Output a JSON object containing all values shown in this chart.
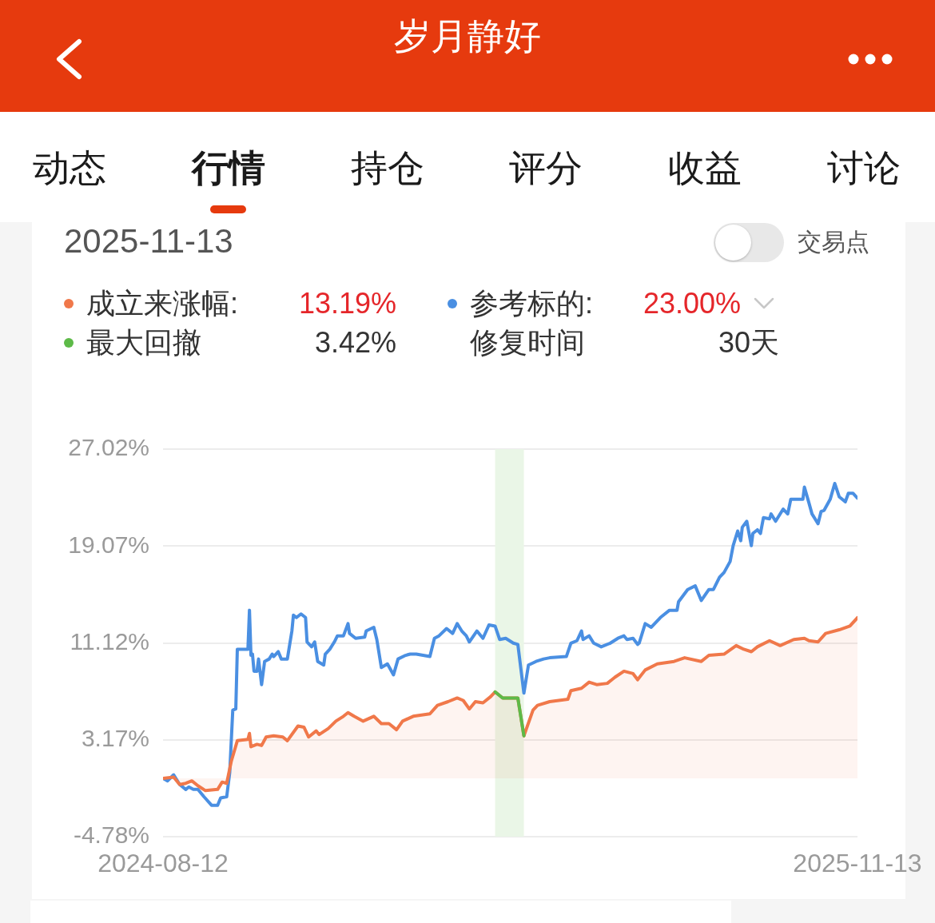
{
  "chart_data": {
    "type": "line",
    "title": "岁月静好",
    "subtitle": "2025-11-13",
    "annotations": [
      "动态",
      "行情",
      "持仓",
      "评分",
      "收益",
      "讨论",
      "交易点",
      "13.19%",
      "23.00%",
      "3.42%",
      "修复时间",
      "30天"
    ],
    "xlim": [
      "2024-08-12",
      "2025-11-13"
    ],
    "xticks": [
      "2024-08-12",
      "2025-11-13"
    ],
    "ylim": [
      -4.78,
      27.02
    ],
    "yticks": [
      {
        "value": -4.78,
        "label": "-4.78%"
      },
      {
        "value": 3.17,
        "label": "3.17%"
      },
      {
        "value": 11.12,
        "label": "11.12%"
      },
      {
        "value": 19.07,
        "label": "19.07%"
      },
      {
        "value": 27.02,
        "label": "27.02%"
      }
    ],
    "grid": "y",
    "legend": "top",
    "marker": "none",
    "bands": [
      {
        "axis": "x",
        "from": "2025-03-19",
        "to": "2025-04-07",
        "color": "#eaf6e7"
      }
    ],
    "series": [
      {
        "name": "成立来涨幅:",
        "type": "area",
        "color": "#f0784a",
        "x": [
          "2024-08-12",
          "2024-08-19",
          "2024-08-23",
          "2024-08-27",
          "2024-08-31",
          "2024-09-04",
          "2024-09-09",
          "2024-09-17",
          "2024-09-20",
          "2024-09-23",
          "2024-09-26",
          "2024-09-30",
          "2024-10-07",
          "2024-10-08",
          "2024-10-09",
          "2024-10-13",
          "2024-10-16",
          "2024-10-19",
          "2024-10-24",
          "2024-10-30",
          "2024-11-02",
          "2024-11-09",
          "2024-11-13",
          "2024-11-16",
          "2024-11-21",
          "2024-11-23",
          "2024-11-29",
          "2024-12-04",
          "2024-12-09",
          "2024-12-12",
          "2024-12-16",
          "2024-12-22",
          "2024-12-29",
          "2025-01-03",
          "2025-01-08",
          "2025-01-13",
          "2025-01-17",
          "2025-01-24",
          "2025-02-04",
          "2025-02-09",
          "2025-02-16",
          "2025-02-22",
          "2025-02-26",
          "2025-03-02",
          "2025-03-06",
          "2025-03-11",
          "2025-03-16",
          "2025-03-19",
          "2025-03-24",
          "2025-03-31",
          "2025-04-03",
          "2025-04-07",
          "2025-04-13",
          "2025-04-16",
          "2025-04-24",
          "2025-05-06",
          "2025-05-08",
          "2025-05-15",
          "2025-05-20",
          "2025-05-25",
          "2025-06-01",
          "2025-06-06",
          "2025-06-12",
          "2025-06-18",
          "2025-06-21",
          "2025-06-26",
          "2025-07-04",
          "2025-07-15",
          "2025-07-22",
          "2025-08-02",
          "2025-08-07",
          "2025-08-17",
          "2025-08-25",
          "2025-08-30",
          "2025-09-04",
          "2025-09-08",
          "2025-09-16",
          "2025-09-23",
          "2025-10-02",
          "2025-10-09",
          "2025-10-12",
          "2025-10-18",
          "2025-10-23",
          "2025-11-01",
          "2025-11-08",
          "2025-11-13"
        ],
        "values": [
          0,
          0.1,
          -0.5,
          -0.4,
          -0.2,
          -0.6,
          -1.0,
          -0.9,
          -0.3,
          -0.4,
          1.4,
          3.1,
          3.2,
          3.7,
          2.6,
          2.8,
          2.7,
          3.4,
          3.5,
          3.4,
          3.1,
          4.3,
          4.2,
          3.4,
          3.9,
          3.6,
          4.1,
          4.7,
          5.1,
          5.4,
          5.1,
          4.7,
          5.1,
          4.5,
          4.5,
          4.0,
          4.7,
          5.1,
          5.3,
          6.0,
          6.3,
          6.6,
          6.4,
          5.7,
          6.3,
          6.2,
          6.7,
          7.1,
          6.6,
          6.6,
          6.6,
          3.5,
          5.6,
          6.0,
          6.3,
          6.5,
          7.2,
          7.4,
          7.9,
          7.7,
          7.8,
          8.3,
          8.8,
          8.6,
          8.1,
          8.9,
          9.4,
          9.6,
          9.9,
          9.6,
          10.1,
          10.2,
          10.9,
          10.6,
          10.4,
          10.8,
          11.3,
          10.9,
          11.4,
          11.5,
          11.3,
          11.2,
          11.9,
          12.2,
          12.5,
          13.19
        ]
      },
      {
        "name": "参考标的:",
        "type": "line",
        "color": "#4a8fe2",
        "x": [
          "2024-08-12",
          "2024-08-15",
          "2024-08-19",
          "2024-08-23",
          "2024-08-27",
          "2024-08-29",
          "2024-09-01",
          "2024-09-04",
          "2024-09-08",
          "2024-09-13",
          "2024-09-17",
          "2024-09-19",
          "2024-09-23",
          "2024-09-25",
          "2024-09-27",
          "2024-09-29",
          "2024-09-30",
          "2024-10-07",
          "2024-10-08",
          "2024-10-09",
          "2024-10-10",
          "2024-10-11",
          "2024-10-13",
          "2024-10-14",
          "2024-10-16",
          "2024-10-18",
          "2024-10-21",
          "2024-10-23",
          "2024-10-24",
          "2024-10-27",
          "2024-10-29",
          "2024-11-02",
          "2024-11-05",
          "2024-11-06",
          "2024-11-08",
          "2024-11-11",
          "2024-11-14",
          "2024-11-15",
          "2024-11-18",
          "2024-11-20",
          "2024-11-22",
          "2024-11-26",
          "2024-11-27",
          "2024-11-30",
          "2024-12-03",
          "2024-12-05",
          "2024-12-09",
          "2024-12-12",
          "2024-12-13",
          "2024-12-17",
          "2024-12-23",
          "2024-12-24",
          "2024-12-29",
          "2024-12-31",
          "2025-01-03",
          "2025-01-07",
          "2025-01-11",
          "2025-01-14",
          "2025-01-19",
          "2025-01-22",
          "2025-01-26",
          "2025-02-04",
          "2025-02-07",
          "2025-02-10",
          "2025-02-15",
          "2025-02-19",
          "2025-02-22",
          "2025-02-25",
          "2025-02-28",
          "2025-03-02",
          "2025-03-07",
          "2025-03-11",
          "2025-03-15",
          "2025-03-19",
          "2025-03-22",
          "2025-03-26",
          "2025-03-31",
          "2025-04-03",
          "2025-04-07",
          "2025-04-10",
          "2025-04-15",
          "2025-04-20",
          "2025-04-24",
          "2025-05-05",
          "2025-05-08",
          "2025-05-12",
          "2025-05-15",
          "2025-05-16",
          "2025-05-20",
          "2025-05-23",
          "2025-05-28",
          "2025-06-03",
          "2025-06-08",
          "2025-06-12",
          "2025-06-14",
          "2025-06-18",
          "2025-06-21",
          "2025-06-22",
          "2025-06-26",
          "2025-06-30",
          "2025-07-06",
          "2025-07-12",
          "2025-07-17",
          "2025-07-18",
          "2025-07-24",
          "2025-07-29",
          "2025-08-02",
          "2025-08-07",
          "2025-08-10",
          "2025-08-14",
          "2025-08-17",
          "2025-08-21",
          "2025-08-23",
          "2025-08-26",
          "2025-08-28",
          "2025-08-29",
          "2025-09-01",
          "2025-09-04",
          "2025-09-05",
          "2025-09-08",
          "2025-09-10",
          "2025-09-12",
          "2025-09-16",
          "2025-09-17",
          "2025-09-20",
          "2025-09-25",
          "2025-09-28",
          "2025-09-30",
          "2025-10-08",
          "2025-10-09",
          "2025-10-12",
          "2025-10-14",
          "2025-10-18",
          "2025-10-20",
          "2025-10-22",
          "2025-10-26",
          "2025-10-29",
          "2025-11-01",
          "2025-11-05",
          "2025-11-07",
          "2025-11-10",
          "2025-11-13"
        ],
        "values": [
          0,
          -0.2,
          0.3,
          -0.5,
          -0.9,
          -0.7,
          -0.9,
          -0.9,
          -1.5,
          -2.2,
          -2.2,
          -1.6,
          -1.5,
          0.5,
          5.6,
          5.7,
          10.6,
          10.6,
          13.8,
          10.1,
          10.2,
          8.8,
          8.8,
          9.8,
          7.7,
          9.6,
          9.8,
          10.2,
          10.0,
          10.4,
          9.8,
          9.8,
          12.1,
          13.4,
          13.2,
          13.5,
          13.2,
          11.2,
          10.8,
          11.2,
          9.6,
          9.3,
          10.2,
          10.6,
          11.2,
          11.7,
          11.7,
          12.7,
          11.9,
          11.5,
          11.6,
          12.1,
          12.4,
          11.4,
          9.1,
          9.4,
          8.5,
          9.8,
          10.1,
          10.2,
          10.2,
          10.0,
          11.5,
          11.7,
          12.3,
          11.9,
          12.7,
          12.1,
          11.7,
          11.2,
          12.1,
          11.5,
          12.6,
          12.5,
          11.4,
          11.5,
          11.1,
          11.0,
          7.0,
          9.3,
          9.6,
          9.8,
          9.9,
          10.0,
          11.1,
          11.3,
          12.1,
          11.4,
          11.7,
          11.1,
          10.8,
          11.1,
          11.5,
          11.7,
          11.4,
          11.5,
          11.0,
          11.1,
          12.7,
          12.4,
          13.2,
          13.8,
          13.8,
          14.5,
          15.5,
          15.8,
          14.6,
          15.5,
          15.5,
          16.5,
          16.9,
          17.8,
          19.1,
          20.3,
          19.5,
          20.6,
          21.1,
          19.1,
          20.1,
          20.4,
          20.1,
          21.4,
          21.3,
          21.7,
          21.1,
          22.1,
          21.7,
          22.9,
          22.9,
          23.9,
          22.6,
          21.7,
          20.9,
          21.9,
          22.0,
          22.9,
          24.2,
          23.1,
          22.7,
          23.4,
          23.4,
          23.0
        ]
      },
      {
        "name": "最大回撤",
        "type": "line",
        "color": "#5dba48",
        "x": [
          "2025-03-19",
          "2025-03-24",
          "2025-03-31",
          "2025-04-03",
          "2025-04-07"
        ],
        "values": [
          7.1,
          6.6,
          6.6,
          6.6,
          3.5
        ]
      }
    ]
  }
}
